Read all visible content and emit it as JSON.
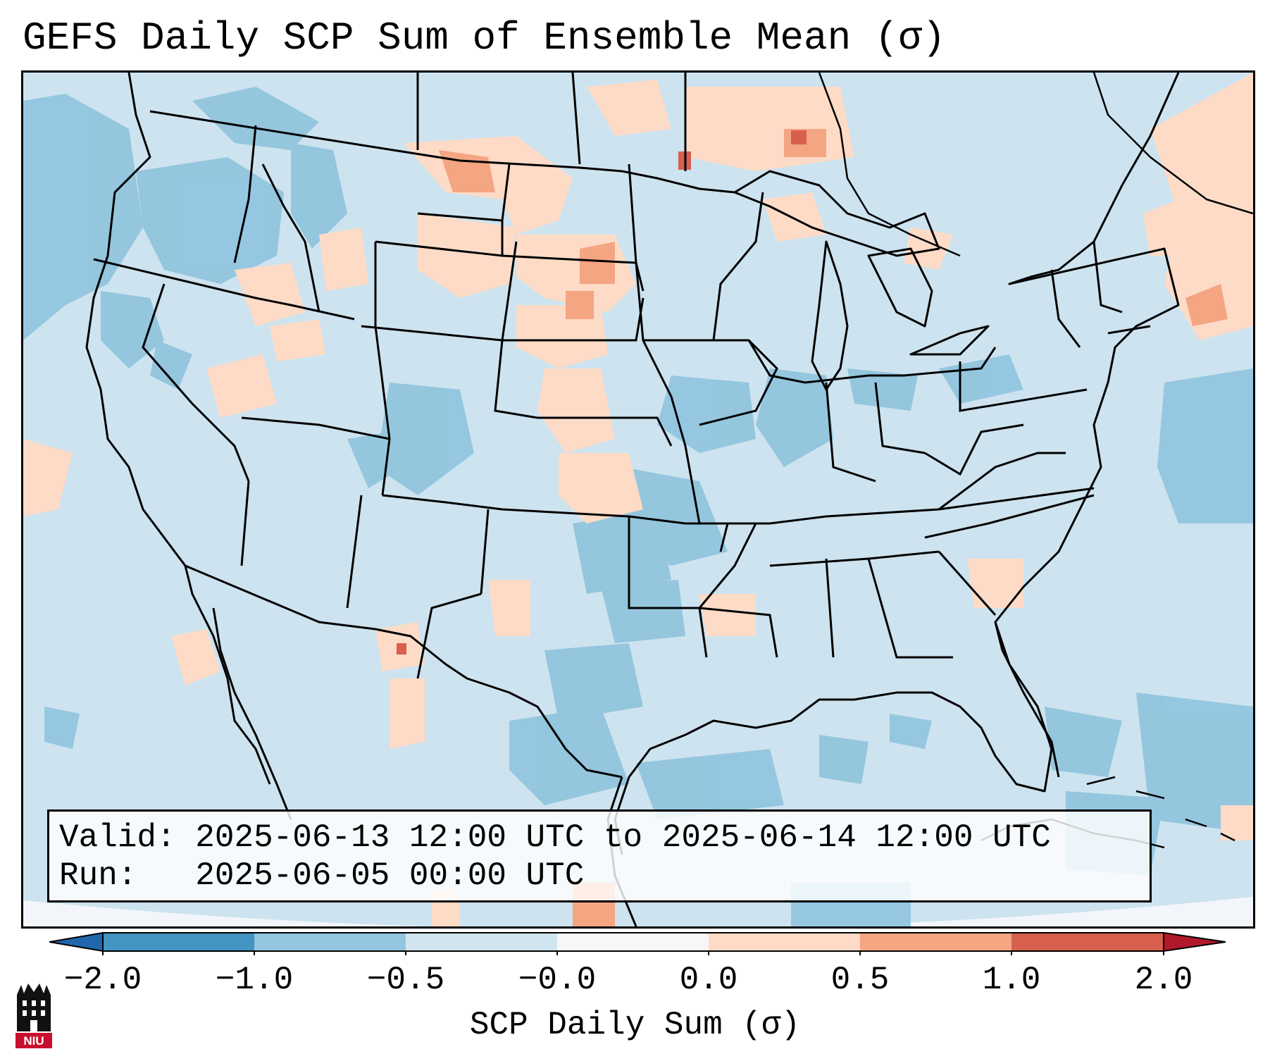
{
  "title": "GEFS Daily SCP Sum of Ensemble Mean (σ)",
  "info": {
    "valid_label": "Valid:",
    "valid_value": "2025-06-13 12:00 UTC to 2025-06-14 12:00 UTC",
    "run_label": "Run:",
    "run_value": "2025-06-05 00:00 UTC"
  },
  "colorbar": {
    "label": "SCP Daily Sum (σ)",
    "ticks": [
      "−2.0",
      "−1.0",
      "−0.5",
      "−0.0",
      "0.0",
      "0.5",
      "1.0",
      "2.0"
    ],
    "colors": {
      "extend_low": "#2166ac",
      "lt_m1": "#4393c3",
      "m1_m05": "#92c5de",
      "m05_0": "#d1e5f0",
      "zero": "#f7f7f7",
      "p0_05": "#fddbc7",
      "p05_1": "#f4a582",
      "p1_2": "#d6604d",
      "extend_high": "#b2182b"
    }
  },
  "logo": {
    "text": "NIU",
    "color": "#c8102e"
  },
  "map": {
    "background_color": "#d1e5f0",
    "outside_domain_color": "#f2f6fa",
    "state_lines": "US state boundaries, coastlines, Canada/Mexico borders"
  }
}
